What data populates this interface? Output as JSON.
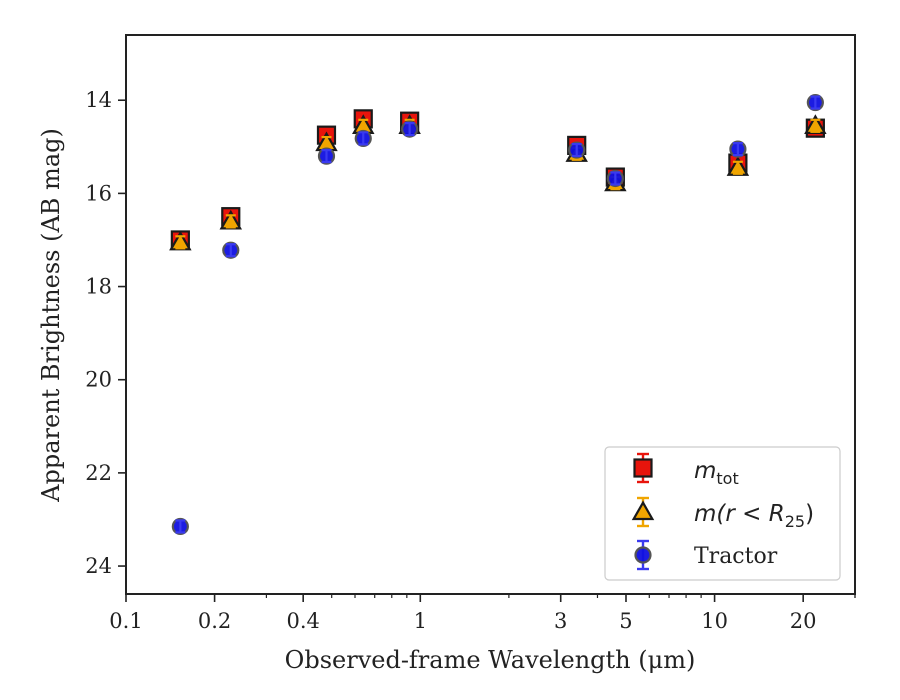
{
  "chart_data": {
    "type": "scatter",
    "title": "",
    "xlabel": "Observed-frame Wavelength (μm)",
    "ylabel": "Apparent Brightness (AB mag)",
    "xscale": "log",
    "xlim": [
      0.1,
      30
    ],
    "ylim": [
      24.6,
      12.6
    ],
    "y_inverted": true,
    "x_ticks": [
      {
        "value": 0.1,
        "label": "0.1"
      },
      {
        "value": 0.2,
        "label": "0.2"
      },
      {
        "value": 0.4,
        "label": "0.4"
      },
      {
        "value": 1,
        "label": "1"
      },
      {
        "value": 3,
        "label": "3"
      },
      {
        "value": 5,
        "label": "5"
      },
      {
        "value": 10,
        "label": "10"
      },
      {
        "value": 20,
        "label": "20"
      }
    ],
    "y_ticks": [
      {
        "value": 14,
        "label": "14"
      },
      {
        "value": 16,
        "label": "16"
      },
      {
        "value": 18,
        "label": "18"
      },
      {
        "value": 20,
        "label": "20"
      },
      {
        "value": 22,
        "label": "22"
      },
      {
        "value": 24,
        "label": "24"
      }
    ],
    "grid": false,
    "legend_position": "lower-right",
    "series": [
      {
        "name": "m_tot",
        "legend_main": "m",
        "legend_sub": "tot",
        "marker": "square",
        "fill": "#e8140c",
        "edge": "#1a1a1a",
        "errcolor": "#e8140c",
        "points": [
          {
            "x": 0.153,
            "y": 17.0
          },
          {
            "x": 0.227,
            "y": 16.5
          },
          {
            "x": 0.48,
            "y": 14.75
          },
          {
            "x": 0.64,
            "y": 14.4
          },
          {
            "x": 0.92,
            "y": 14.45
          },
          {
            "x": 3.4,
            "y": 14.97
          },
          {
            "x": 4.6,
            "y": 15.65
          },
          {
            "x": 12.0,
            "y": 15.35
          },
          {
            "x": 22.0,
            "y": 14.6
          }
        ]
      },
      {
        "name": "m(r < R_25)",
        "legend_main": "m(r < R",
        "legend_sub": "25",
        "legend_tail": ")",
        "marker": "triangle",
        "fill": "#f0a500",
        "edge": "#1a1a1a",
        "errcolor": "#f0a500",
        "points": [
          {
            "x": 0.153,
            "y": 17.05
          },
          {
            "x": 0.227,
            "y": 16.6
          },
          {
            "x": 0.48,
            "y": 14.92
          },
          {
            "x": 0.64,
            "y": 14.55
          },
          {
            "x": 0.92,
            "y": 14.55
          },
          {
            "x": 3.4,
            "y": 15.15
          },
          {
            "x": 4.6,
            "y": 15.78
          },
          {
            "x": 12.0,
            "y": 15.45
          },
          {
            "x": 22.0,
            "y": 14.55
          }
        ]
      },
      {
        "name": "Tractor",
        "legend_main": "Tractor",
        "marker": "circle",
        "fill": "#1010e0",
        "edge": "#555555",
        "errcolor": "#3a3af0",
        "points": [
          {
            "x": 0.153,
            "y": 23.15
          },
          {
            "x": 0.227,
            "y": 17.22
          },
          {
            "x": 0.48,
            "y": 15.2
          },
          {
            "x": 0.64,
            "y": 14.82
          },
          {
            "x": 0.92,
            "y": 14.62
          },
          {
            "x": 3.4,
            "y": 15.07
          },
          {
            "x": 4.6,
            "y": 15.68
          },
          {
            "x": 12.0,
            "y": 15.05
          },
          {
            "x": 22.0,
            "y": 14.05
          }
        ]
      }
    ]
  }
}
